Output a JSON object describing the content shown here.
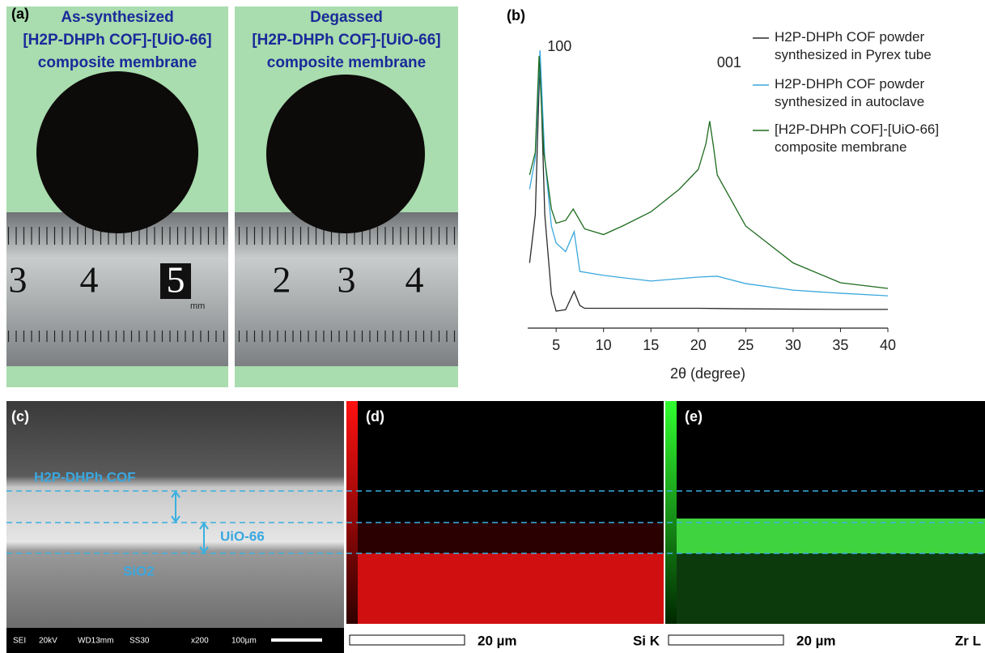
{
  "panel_a": {
    "label": "(a)",
    "photos": [
      {
        "title_lines": [
          "As-synthesized",
          "[H2P-DHPh COF]-[UiO-66]",
          "composite membrane"
        ],
        "ruler_labels": [
          "3",
          "4",
          "5"
        ]
      },
      {
        "title_lines": [
          "Degassed",
          "[H2P-DHPh COF]-[UiO-66]",
          "composite membrane"
        ],
        "ruler_labels": [
          "2",
          "3",
          "4"
        ]
      }
    ],
    "ruler_unit": "mm"
  },
  "chart_data": {
    "type": "line",
    "panel_label": "(b)",
    "xlabel": "2θ (degree)",
    "xlim": [
      2,
      40
    ],
    "xticks": [
      5,
      10,
      15,
      20,
      25,
      30,
      35,
      40
    ],
    "ylim": [
      0,
      100
    ],
    "annotations": [
      {
        "text": "100",
        "x": 3.3
      },
      {
        "text": "001",
        "x": 21.2
      }
    ],
    "series": [
      {
        "name": "H2P-DHPh COF powder synthesized in Pyrex tube",
        "color": "#2a2a2a",
        "x": [
          2.2,
          2.8,
          3.3,
          3.8,
          4.5,
          5,
          6,
          6.9,
          7.5,
          8,
          10,
          15,
          20,
          25,
          30,
          35,
          40
        ],
        "values": [
          23,
          40,
          96,
          40,
          12,
          6,
          6.5,
          13,
          8,
          7,
          7,
          7,
          7,
          6.8,
          6.7,
          6.6,
          6.6
        ]
      },
      {
        "name": "H2P-DHPh COF powder synthesized in autoclave",
        "color": "#3aa8dc",
        "x": [
          2.2,
          2.8,
          3.3,
          3.8,
          4.5,
          5,
          6,
          6.9,
          7.5,
          10,
          15,
          20,
          22,
          25,
          30,
          35,
          40
        ],
        "values": [
          49,
          60,
          98,
          60,
          36,
          30,
          27,
          34,
          20,
          18.6,
          16.6,
          18,
          18.3,
          15.7,
          13.4,
          12.3,
          11.4
        ]
      },
      {
        "name": "[H2P-DHPh COF]-[UiO-66] composite membrane",
        "color": "#1d6b1d",
        "x": [
          2.2,
          2.8,
          3.2,
          3.7,
          4.5,
          5,
          6,
          6.8,
          8,
          10,
          12,
          15,
          18,
          20,
          20.8,
          21.2,
          21.6,
          22,
          25,
          30,
          35,
          40
        ],
        "values": [
          54,
          62,
          96,
          62,
          42,
          37,
          38,
          42,
          35,
          33,
          36,
          41,
          49,
          56,
          65,
          73,
          64,
          54,
          36,
          23,
          16,
          14
        ]
      }
    ]
  },
  "panel_c": {
    "label": "(c)",
    "layers": [
      "H2P-DHPh COF",
      "UiO-66",
      "SiO2"
    ],
    "info": [
      "SEI",
      "20kV",
      "WD13mm",
      "SS30",
      "x200",
      "100µm"
    ]
  },
  "panel_d": {
    "label": "(d)",
    "scale": "20 µm",
    "element": "Si K"
  },
  "panel_e": {
    "label": "(e)",
    "scale": "20 µm",
    "element": "Zr L"
  }
}
